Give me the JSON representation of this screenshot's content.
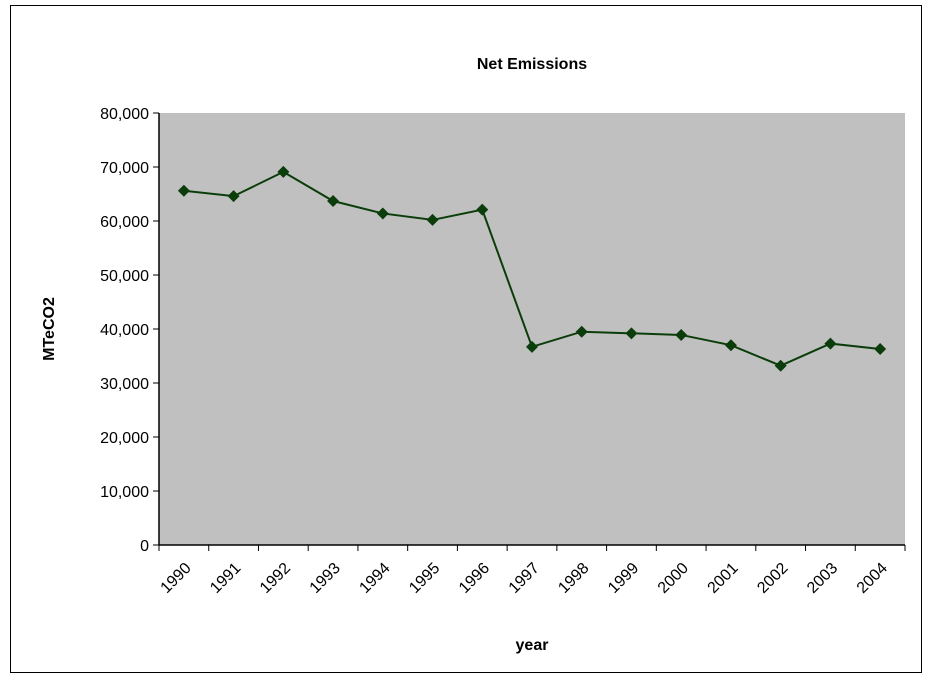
{
  "chart_data": {
    "type": "line",
    "title": "Net Emissions",
    "xlabel": "year",
    "ylabel": "MTeCO2",
    "categories": [
      "1990",
      "1991",
      "1992",
      "1993",
      "1994",
      "1995",
      "1996",
      "1997",
      "1998",
      "1999",
      "2000",
      "2001",
      "2002",
      "2003",
      "2004"
    ],
    "series": [
      {
        "values": [
          65600,
          64600,
          69100,
          63700,
          61400,
          60200,
          62100,
          36700,
          39500,
          39200,
          38900,
          37000,
          33200,
          37300,
          36300
        ]
      }
    ],
    "ylim": [
      0,
      80000
    ],
    "yticks": [
      0,
      10000,
      20000,
      30000,
      40000,
      50000,
      60000,
      70000,
      80000
    ],
    "ytick_labels": [
      "0",
      "10,000",
      "20,000",
      "30,000",
      "40,000",
      "50,000",
      "60,000",
      "70,000",
      "80,000"
    ],
    "grid": false,
    "legend": "none",
    "colors": {
      "plot_background": "#c0c0c0",
      "line": "#0b3d0b",
      "marker": "#0b3d0b"
    }
  }
}
